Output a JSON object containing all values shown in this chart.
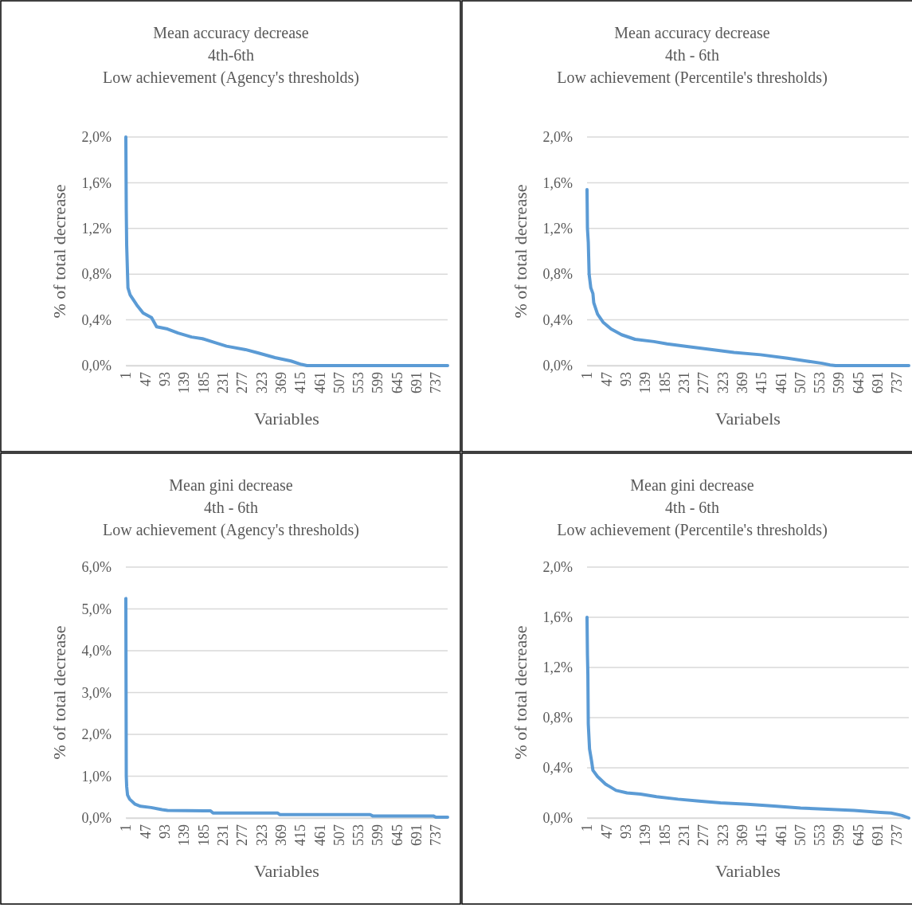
{
  "chart_data": [
    {
      "type": "line",
      "title": "Mean accuracy decrease",
      "subtitle": "4th-6th\nLow achievement (Agency's thresholds)",
      "xlabel": "Variables",
      "ylabel": "% of total decrease",
      "xlim": [
        1,
        765
      ],
      "xticks": [
        1,
        47,
        93,
        139,
        185,
        231,
        277,
        323,
        369,
        415,
        461,
        507,
        553,
        599,
        645,
        691,
        737
      ],
      "ylim": [
        0,
        2.0
      ],
      "yticks": [
        {
          "value": 0,
          "label": "0,0%"
        },
        {
          "value": 0.4,
          "label": "0,4%"
        },
        {
          "value": 0.8,
          "label": "0,8%"
        },
        {
          "value": 1.2,
          "label": "1,2%"
        },
        {
          "value": 1.6,
          "label": "1,6%"
        },
        {
          "value": 2.0,
          "label": "2,0%"
        }
      ],
      "grid": "y",
      "marker": "none",
      "line_style": "solid",
      "series": [
        {
          "color": "#5b9bd5",
          "x": [
            1,
            2,
            3,
            6,
            11,
            27,
            42,
            62,
            74,
            100,
            125,
            157,
            183,
            214,
            240,
            285,
            316,
            355,
            393,
            418,
            431,
            765
          ],
          "values": [
            2.0,
            1.36,
            1.05,
            0.68,
            0.62,
            0.53,
            0.46,
            0.42,
            0.34,
            0.32,
            0.285,
            0.25,
            0.235,
            0.2,
            0.17,
            0.14,
            0.11,
            0.07,
            0.04,
            0.01,
            0.0,
            0.0
          ]
        }
      ]
    },
    {
      "type": "line",
      "title": "Mean accuracy decrease",
      "subtitle": "4th - 6th\nLow achievement (Percentile's thresholds)",
      "xlabel": "Variabels",
      "ylabel": "% of total decrease",
      "xlim": [
        1,
        765
      ],
      "xticks": [
        1,
        47,
        93,
        139,
        185,
        231,
        277,
        323,
        369,
        415,
        461,
        507,
        553,
        599,
        645,
        691,
        737
      ],
      "ylim": [
        0,
        2.0
      ],
      "yticks": [
        {
          "value": 0,
          "label": "0,0%"
        },
        {
          "value": 0.4,
          "label": "0,4%"
        },
        {
          "value": 0.8,
          "label": "0,8%"
        },
        {
          "value": 1.2,
          "label": "1,2%"
        },
        {
          "value": 1.6,
          "label": "1,6%"
        },
        {
          "value": 2.0,
          "label": "2,0%"
        }
      ],
      "grid": "y",
      "marker": "none",
      "line_style": "solid",
      "series": [
        {
          "color": "#5b9bd5",
          "x": [
            1,
            2,
            4,
            6,
            10,
            15,
            17,
            26,
            39,
            58,
            83,
            115,
            160,
            191,
            242,
            287,
            350,
            413,
            477,
            521,
            559,
            578,
            591,
            765
          ],
          "values": [
            1.54,
            1.2,
            1.08,
            0.8,
            0.68,
            0.63,
            0.55,
            0.45,
            0.38,
            0.32,
            0.27,
            0.23,
            0.21,
            0.19,
            0.165,
            0.145,
            0.115,
            0.095,
            0.065,
            0.04,
            0.02,
            0.005,
            0.0,
            0.0
          ]
        }
      ]
    },
    {
      "type": "line",
      "title": "Mean gini decrease",
      "subtitle": "4th - 6th\nLow achievement (Agency's thresholds)",
      "xlabel": "Variables",
      "ylabel": "% of total decrease",
      "xlim": [
        1,
        765
      ],
      "xticks": [
        1,
        47,
        93,
        139,
        185,
        231,
        277,
        323,
        369,
        415,
        461,
        507,
        553,
        599,
        645,
        691,
        737
      ],
      "ylim": [
        0,
        6.0
      ],
      "yticks": [
        {
          "value": 0,
          "label": "0,0%"
        },
        {
          "value": 1,
          "label": "1,0%"
        },
        {
          "value": 2,
          "label": "2,0%"
        },
        {
          "value": 3,
          "label": "3,0%"
        },
        {
          "value": 4,
          "label": "4,0%"
        },
        {
          "value": 5,
          "label": "5,0%"
        },
        {
          "value": 6,
          "label": "6,0%"
        }
      ],
      "grid": "y",
      "marker": "none",
      "line_style": "solid",
      "series": [
        {
          "color": "#5b9bd5",
          "x": [
            1,
            2,
            3,
            5,
            10,
            23,
            36,
            61,
            87,
            100,
            202,
            208,
            361,
            367,
            581,
            587,
            731,
            737,
            765
          ],
          "values": [
            5.25,
            1.0,
            0.75,
            0.55,
            0.45,
            0.33,
            0.28,
            0.25,
            0.2,
            0.18,
            0.17,
            0.12,
            0.12,
            0.08,
            0.08,
            0.05,
            0.05,
            0.02,
            0.02
          ]
        }
      ]
    },
    {
      "type": "line",
      "title": "Mean gini decrease",
      "subtitle": "4th - 6th\nLow achievement (Percentile's thresholds)",
      "xlabel": "Variables",
      "ylabel": "% of total decrease",
      "xlim": [
        1,
        765
      ],
      "xticks": [
        1,
        47,
        93,
        139,
        185,
        231,
        277,
        323,
        369,
        415,
        461,
        507,
        553,
        599,
        645,
        691,
        737
      ],
      "ylim": [
        0,
        2.0
      ],
      "yticks": [
        {
          "value": 0,
          "label": "0,0%"
        },
        {
          "value": 0.4,
          "label": "0,4%"
        },
        {
          "value": 0.8,
          "label": "0,8%"
        },
        {
          "value": 1.2,
          "label": "1,2%"
        },
        {
          "value": 1.6,
          "label": "1,6%"
        },
        {
          "value": 2.0,
          "label": "2,0%"
        }
      ],
      "grid": "y",
      "marker": "none",
      "line_style": "solid",
      "series": [
        {
          "color": "#5b9bd5",
          "x": [
            1,
            2,
            3,
            4,
            7,
            12,
            15,
            26,
            45,
            70,
            96,
            128,
            166,
            217,
            267,
            318,
            382,
            445,
            508,
            572,
            635,
            698,
            723,
            749,
            765
          ],
          "values": [
            1.6,
            1.3,
            1.15,
            0.75,
            0.55,
            0.45,
            0.38,
            0.33,
            0.27,
            0.22,
            0.2,
            0.19,
            0.17,
            0.15,
            0.135,
            0.12,
            0.11,
            0.095,
            0.08,
            0.07,
            0.06,
            0.045,
            0.04,
            0.02,
            0.0
          ]
        }
      ]
    }
  ]
}
